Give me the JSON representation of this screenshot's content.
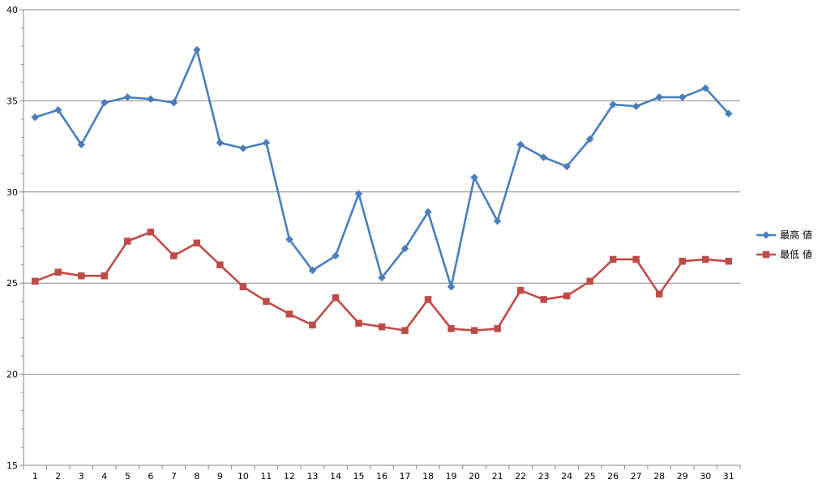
{
  "chart_data": {
    "type": "line",
    "title": "",
    "xlabel": "",
    "ylabel": "",
    "categories": [
      "1",
      "2",
      "3",
      "4",
      "5",
      "6",
      "7",
      "8",
      "9",
      "10",
      "11",
      "12",
      "13",
      "14",
      "15",
      "16",
      "17",
      "18",
      "19",
      "20",
      "21",
      "22",
      "23",
      "24",
      "25",
      "26",
      "27",
      "28",
      "29",
      "30",
      "31"
    ],
    "ylim": [
      15,
      40
    ],
    "yticks": [
      "15",
      "20",
      "25",
      "30",
      "35",
      "40"
    ],
    "grid": true,
    "legend_position": "right",
    "series": [
      {
        "name": "最高 値",
        "color": "#4a7ebb",
        "marker": "diamond",
        "values": [
          34.1,
          34.5,
          32.6,
          34.9,
          35.2,
          35.1,
          34.9,
          37.8,
          32.7,
          32.4,
          32.7,
          27.4,
          25.7,
          26.5,
          29.9,
          25.3,
          26.9,
          28.9,
          24.8,
          30.8,
          28.4,
          32.6,
          31.9,
          31.4,
          32.9,
          34.8,
          34.7,
          35.2,
          35.2,
          35.7,
          34.3
        ]
      },
      {
        "name": "最低 値",
        "color": "#be4b48",
        "marker": "square",
        "values": [
          25.1,
          25.6,
          25.4,
          25.4,
          27.3,
          27.8,
          26.5,
          27.2,
          26.0,
          24.8,
          24.0,
          23.3,
          22.7,
          24.2,
          22.8,
          22.6,
          22.4,
          24.1,
          22.5,
          22.4,
          22.5,
          24.6,
          24.1,
          24.3,
          25.1,
          26.3,
          26.3,
          24.4,
          26.2,
          26.3,
          26.2
        ]
      }
    ]
  }
}
